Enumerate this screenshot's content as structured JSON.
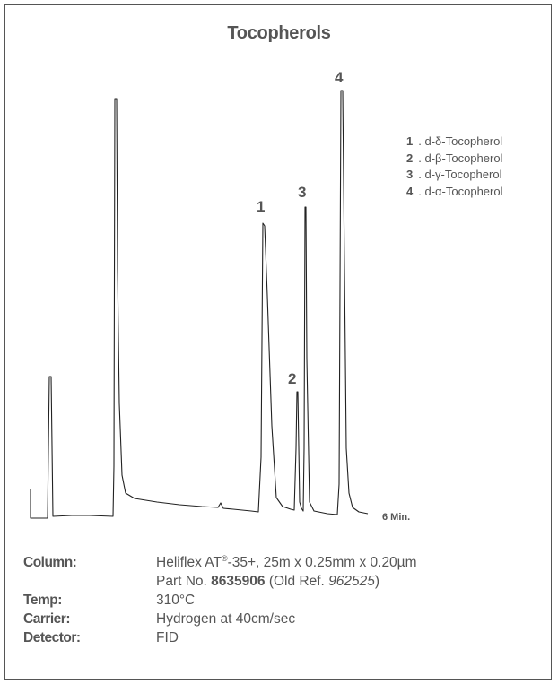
{
  "chart_data": {
    "type": "line",
    "title": "Tocopherols",
    "x_end_label": "6 Min.",
    "peaks": [
      {
        "label": "1",
        "name": "d-δ-Tocopherol"
      },
      {
        "label": "2",
        "name": "d-β-Tocopherol"
      },
      {
        "label": "3",
        "name": "d-γ-Tocopherol"
      },
      {
        "label": "4",
        "name": "d-α-Tocopherol"
      }
    ],
    "trace_color": "#222222",
    "text_color": "#555555"
  },
  "conditions": {
    "column_label": "Column:",
    "column_value": "Heliflex AT",
    "column_mark": "®",
    "column_value_rest": "-35+, 25m x 0.25mm x 0.20µm",
    "part_prefix": "Part No. ",
    "part_no": "8635906",
    "old_ref_prefix": " (Old Ref. ",
    "old_ref": "962525",
    "old_ref_suffix": ")",
    "temp_label": "Temp:",
    "temp_value": "310°C",
    "carrier_label": "Carrier:",
    "carrier_value": "Hydrogen at 40cm/sec",
    "detector_label": "Detector:",
    "detector_value": "FID"
  }
}
